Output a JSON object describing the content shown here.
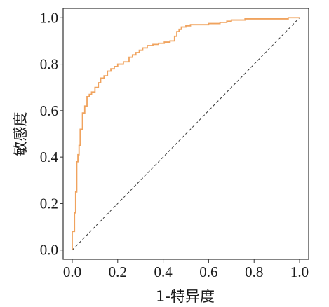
{
  "chart_data": {
    "type": "line",
    "title": "",
    "xlabel": "1-特异度",
    "ylabel": "敏感度",
    "xlim": [
      -0.04,
      1.04
    ],
    "ylim": [
      -0.04,
      1.04
    ],
    "x_ticks": [
      "0.0",
      "0.2",
      "0.4",
      "0.6",
      "0.8",
      "1.0"
    ],
    "y_ticks": [
      "0.0",
      "0.2",
      "0.4",
      "0.6",
      "0.8",
      "1.0"
    ],
    "grid": false,
    "legend": "none",
    "colors": {
      "roc": "#f0a35e",
      "reference": "#333333",
      "frame": "#333333"
    },
    "series": [
      {
        "style": "step",
        "x": [
          0.0,
          0.0,
          0.01,
          0.01,
          0.015,
          0.015,
          0.02,
          0.02,
          0.025,
          0.025,
          0.03,
          0.03,
          0.035,
          0.035,
          0.045,
          0.045,
          0.055,
          0.055,
          0.065,
          0.065,
          0.075,
          0.075,
          0.085,
          0.085,
          0.1,
          0.1,
          0.115,
          0.115,
          0.125,
          0.125,
          0.14,
          0.14,
          0.155,
          0.155,
          0.17,
          0.17,
          0.185,
          0.185,
          0.2,
          0.2,
          0.225,
          0.225,
          0.25,
          0.25,
          0.265,
          0.265,
          0.28,
          0.28,
          0.295,
          0.295,
          0.31,
          0.31,
          0.33,
          0.33,
          0.355,
          0.355,
          0.38,
          0.38,
          0.405,
          0.405,
          0.43,
          0.43,
          0.45,
          0.45,
          0.46,
          0.46,
          0.47,
          0.47,
          0.48,
          0.48,
          0.5,
          0.5,
          0.52,
          0.52,
          0.55,
          0.55,
          0.6,
          0.6,
          0.65,
          0.65,
          0.68,
          0.68,
          0.7,
          0.7,
          0.76,
          0.76,
          0.95,
          0.95,
          1.0
        ],
        "y": [
          0.0,
          0.08,
          0.08,
          0.16,
          0.16,
          0.25,
          0.25,
          0.38,
          0.38,
          0.41,
          0.41,
          0.45,
          0.45,
          0.52,
          0.52,
          0.59,
          0.59,
          0.62,
          0.62,
          0.66,
          0.66,
          0.67,
          0.67,
          0.68,
          0.68,
          0.7,
          0.7,
          0.72,
          0.72,
          0.74,
          0.74,
          0.75,
          0.75,
          0.77,
          0.77,
          0.78,
          0.78,
          0.79,
          0.79,
          0.8,
          0.8,
          0.81,
          0.81,
          0.83,
          0.83,
          0.84,
          0.84,
          0.85,
          0.85,
          0.86,
          0.86,
          0.87,
          0.87,
          0.88,
          0.88,
          0.885,
          0.885,
          0.89,
          0.89,
          0.895,
          0.895,
          0.9,
          0.9,
          0.92,
          0.92,
          0.94,
          0.94,
          0.95,
          0.95,
          0.96,
          0.96,
          0.965,
          0.965,
          0.97,
          0.97,
          0.97,
          0.97,
          0.975,
          0.975,
          0.98,
          0.98,
          0.985,
          0.985,
          0.99,
          0.99,
          0.995,
          0.995,
          1.0,
          1.0
        ]
      },
      {
        "style": "dashed",
        "x": [
          0.0,
          1.0
        ],
        "y": [
          0.0,
          1.0
        ]
      }
    ]
  }
}
